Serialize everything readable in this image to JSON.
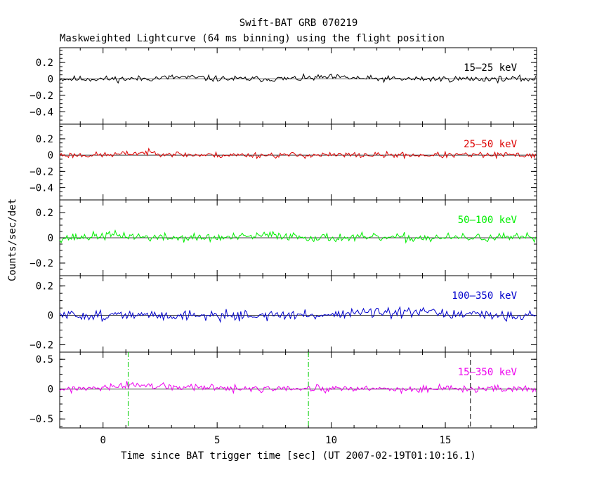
{
  "chart_data": {
    "type": "line",
    "title": "Swift-BAT GRB 070219",
    "subtitle": "Maskweighted Lightcurve (64 ms binning) using the flight position",
    "xlabel": "Time since BAT trigger time [sec] (UT 2007-02-19T01:10:16.1)",
    "ylabel": "Counts/sec/det",
    "xlim": [
      -1.9,
      19.0
    ],
    "x_ticks": [
      0,
      5,
      10,
      15
    ],
    "bin_sec": 0.064,
    "vlines": [
      {
        "x": 1.1,
        "color": "#00cc00",
        "style": "dash-dot"
      },
      {
        "x": 9.0,
        "color": "#00cc00",
        "style": "dash-dot"
      },
      {
        "x": 16.1,
        "color": "#000000",
        "style": "dashed"
      }
    ],
    "panels": [
      {
        "series": "15-25 keV",
        "label": "15–25 keV",
        "color": "#000000",
        "ylim": [
          -0.55,
          0.38
        ],
        "yticks": [
          0.2,
          0,
          -0.2,
          -0.4
        ],
        "yticklabels": [
          "0.2",
          "0",
          "−0.2",
          "−0.4"
        ],
        "noise": 0.018,
        "seed": 11,
        "bumps": [
          [
            3.4,
            0.02
          ],
          [
            10.0,
            0.02
          ]
        ],
        "vlines": false
      },
      {
        "series": "25-50 keV",
        "label": "25–50 keV",
        "color": "#dd0000",
        "ylim": [
          -0.55,
          0.38
        ],
        "yticks": [
          0.2,
          0,
          -0.2,
          -0.4
        ],
        "yticklabels": [
          "0.2",
          "0",
          "−0.2",
          "−0.4"
        ],
        "noise": 0.018,
        "seed": 23,
        "bumps": [
          [
            2.0,
            0.03
          ]
        ],
        "vlines": false
      },
      {
        "series": "50-100 keV",
        "label": "50–100 keV",
        "color": "#00ee00",
        "ylim": [
          -0.3,
          0.3
        ],
        "yticks": [
          0.2,
          0,
          -0.2
        ],
        "yticklabels": [
          "0.2",
          "0",
          "−0.2"
        ],
        "noise": 0.017,
        "seed": 37,
        "bumps": [
          [
            0.5,
            0.02
          ],
          [
            7.5,
            0.02
          ]
        ],
        "vlines": false
      },
      {
        "series": "100-350 keV",
        "label": "100–350 keV",
        "color": "#0000cc",
        "ylim": [
          -0.25,
          0.27
        ],
        "yticks": [
          0.2,
          0,
          -0.2
        ],
        "yticklabels": [
          "0.2",
          "0",
          "−0.2"
        ],
        "noise": 0.017,
        "seed": 51,
        "bumps": [
          [
            11.3,
            0.02
          ],
          [
            14.0,
            0.02
          ]
        ],
        "vlines": false
      },
      {
        "series": "15-350 keV",
        "label": "15–350 keV",
        "color": "#ee00ee",
        "ylim": [
          -0.65,
          0.62
        ],
        "yticks": [
          0.5,
          0,
          -0.5
        ],
        "yticklabels": [
          "0.5",
          "0",
          "−0.5"
        ],
        "noise": 0.03,
        "seed": 77,
        "bumps": [
          [
            1.5,
            0.07
          ],
          [
            4.0,
            0.03
          ]
        ],
        "vlines": true
      }
    ]
  }
}
